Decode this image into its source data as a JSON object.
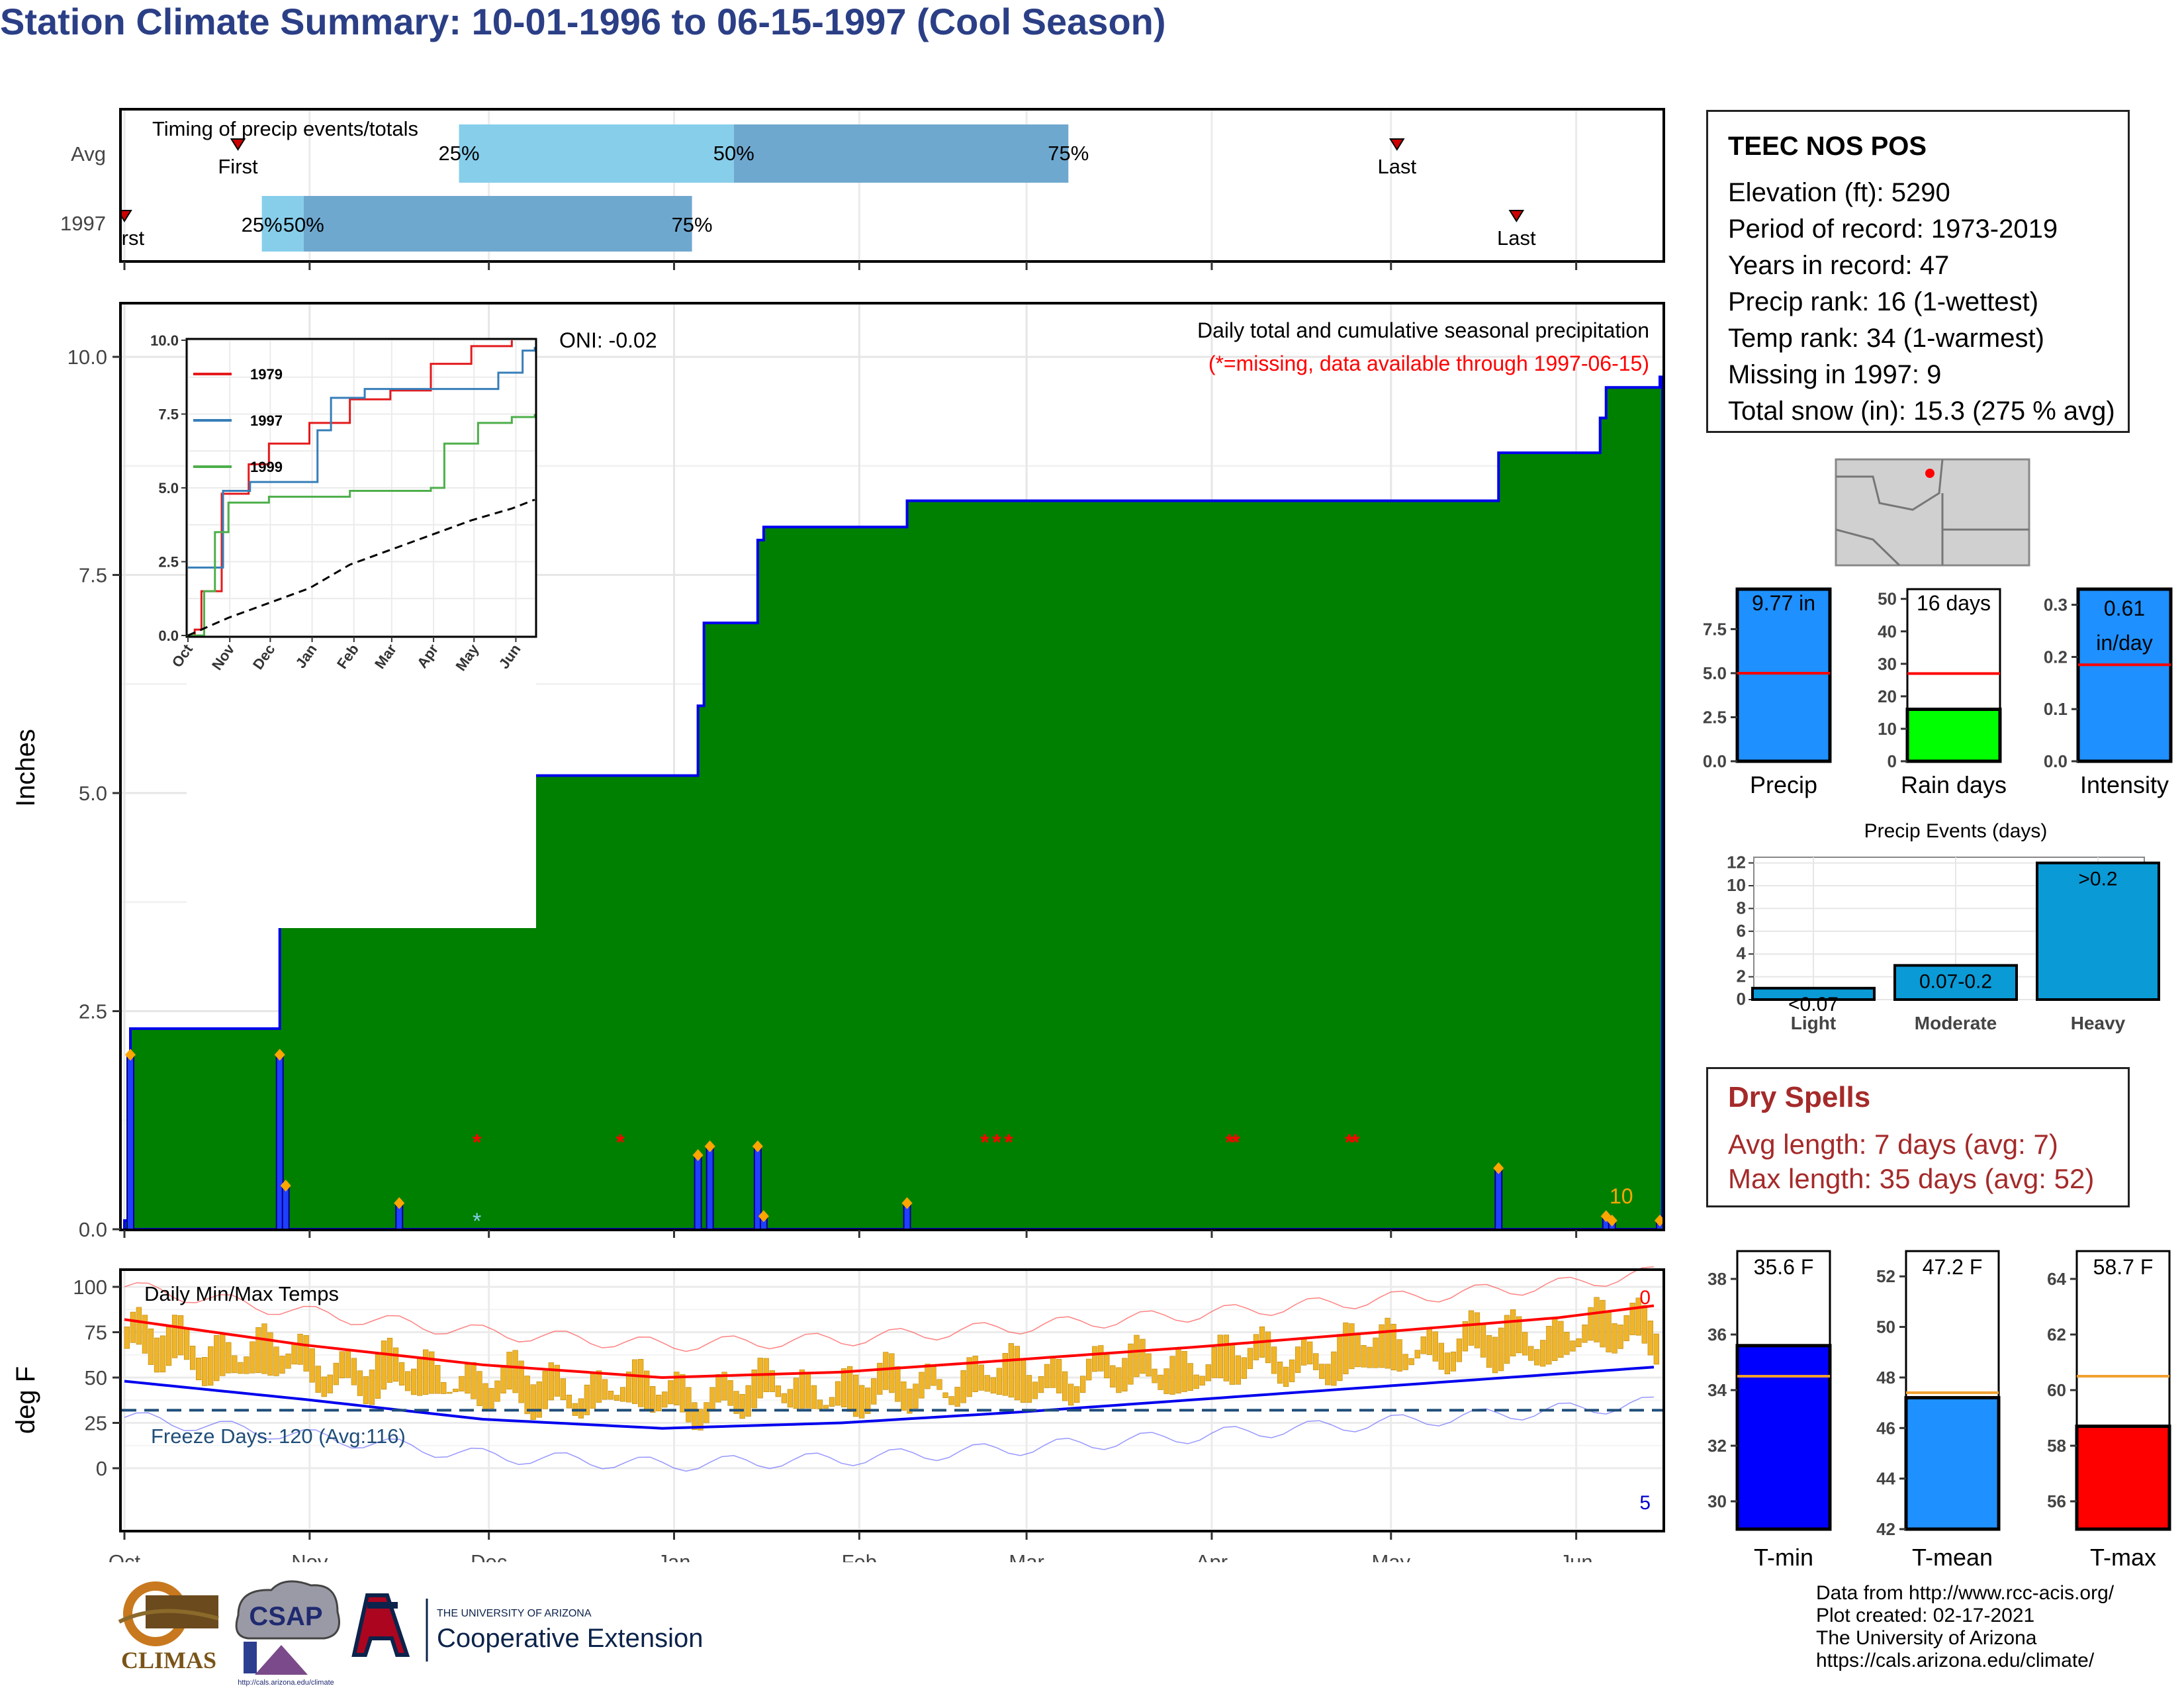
{
  "title": "Station Climate Summary: 10-01-1996 to 06-15-1997 (Cool Season)",
  "timing": {
    "label": "Timing of precip events/totals",
    "rows": [
      {
        "name": "Avg",
        "first_label": "First",
        "last_label": "Last",
        "p25_label": "25%",
        "p50_label": "50%",
        "p75_label": "75%"
      },
      {
        "name": "1997",
        "first_label": "First",
        "last_label": "Last",
        "p25_label": "25%",
        "p50_label": "50%",
        "p75_label": "75%"
      }
    ]
  },
  "main": {
    "ylabel": "Inches",
    "oni": "ONI: -0.02",
    "caption": "Daily total and cumulative seasonal precipitation",
    "missing_note": "(*=missing, data available through 1997-06-15)",
    "corner_count": "10",
    "yticks": [
      "0.0",
      "2.5",
      "5.0",
      "7.5",
      "10.0"
    ]
  },
  "inset": {
    "yticks": [
      "0.0",
      "2.5",
      "5.0",
      "7.5",
      "10.0"
    ],
    "xticks": [
      "Oct",
      "Nov",
      "Dec",
      "Jan",
      "Feb",
      "Mar",
      "Apr",
      "May",
      "Jun"
    ],
    "legend": [
      {
        "name": "1979",
        "color": "#e41a1c"
      },
      {
        "name": "1997",
        "color": "#377eb8"
      },
      {
        "name": "1999",
        "color": "#4daf4a"
      }
    ]
  },
  "temps": {
    "label": "Daily Min/Max Temps",
    "ylabel": "deg F",
    "freeze": "Freeze Days: 120 (Avg:116)",
    "top_count": "0",
    "bottom_count": "5",
    "yticks": [
      "0",
      "25",
      "50",
      "75",
      "100"
    ],
    "xticks": [
      "Oct",
      "Nov",
      "Dec",
      "Jan",
      "Feb",
      "Mar",
      "Apr",
      "May",
      "Jun"
    ]
  },
  "station": {
    "name": "TEEC NOS POS",
    "lines": [
      "Elevation (ft): 5290",
      "Period of record: 1973-2019",
      "Years in record: 47",
      "Precip rank: 16 (1-wettest)",
      "Temp rank: 34 (1-warmest)",
      "Missing in 1997: 9",
      "Total snow (in): 15.3 (275 % avg)"
    ]
  },
  "summary_bars": [
    {
      "label": "Precip",
      "value_text": "9.77 in",
      "yticks": [
        "0.0",
        "2.5",
        "5.0",
        "7.5"
      ]
    },
    {
      "label": "Rain days",
      "value_text": "16 days",
      "yticks": [
        "0",
        "10",
        "20",
        "30",
        "40",
        "50"
      ]
    },
    {
      "label": "Intensity",
      "value_text": "0.61",
      "unit": "in/day",
      "yticks": [
        "0.0",
        "0.1",
        "0.2",
        "0.3"
      ]
    }
  ],
  "events": {
    "title": "Precip Events (days)",
    "yticks": [
      "0",
      "2",
      "4",
      "6",
      "8",
      "10",
      "12"
    ],
    "categories": [
      "Light",
      "Moderate",
      "Heavy"
    ],
    "bar_labels": [
      "<0.07",
      "0.07-0.2",
      ">0.2"
    ]
  },
  "dry_spells": {
    "title": "Dry Spells",
    "lines": [
      "Avg length: 7 days (avg: 7)",
      "Max length: 35 days (avg: 52)"
    ]
  },
  "temp_bars": [
    {
      "label": "T-min",
      "value_text": "35.6 F",
      "yticks": [
        "30",
        "32",
        "34",
        "36",
        "38"
      ]
    },
    {
      "label": "T-mean",
      "value_text": "47.2 F",
      "yticks": [
        "42",
        "44",
        "46",
        "48",
        "50",
        "52"
      ]
    },
    {
      "label": "T-max",
      "value_text": "58.7 F",
      "yticks": [
        "56",
        "58",
        "60",
        "62",
        "64"
      ]
    }
  ],
  "credits": [
    "Data from http://www.rcc-acis.org/",
    "Plot created: 02-17-2021",
    "The University of Arizona",
    "https://cals.arizona.edu/climate/"
  ],
  "logos": {
    "climas": "CLIMAS",
    "csap": "CSAP",
    "csap_url": "http://cals.arizona.edu/climate",
    "ua_small": "THE UNIVERSITY OF ARIZONA",
    "ua_big": "Cooperative Extension"
  },
  "chart_data": [
    {
      "type": "bar",
      "name": "timing",
      "x_unit": "days since Oct 1",
      "rows": [
        {
          "row": "Avg",
          "first": 19,
          "p25": 56,
          "p50": 102,
          "p75": 158,
          "last": 213
        },
        {
          "row": "1997",
          "first": 0,
          "p25": 23,
          "p50": 30,
          "p75": 95,
          "last": 233
        }
      ]
    },
    {
      "type": "area",
      "name": "cumulative precipitation",
      "x_unit": "day of season (0=Oct 1)",
      "ylim": [
        0,
        10.6
      ],
      "observed_cumulative": [
        [
          0,
          0.1
        ],
        [
          1,
          2.3
        ],
        [
          25,
          2.3
        ],
        [
          26,
          4.3
        ],
        [
          27,
          4.8
        ],
        [
          31,
          4.9
        ],
        [
          45,
          4.9
        ],
        [
          46,
          5.2
        ],
        [
          95,
          5.2
        ],
        [
          96,
          6.0
        ],
        [
          97,
          6.95
        ],
        [
          105,
          6.95
        ],
        [
          106,
          7.9
        ],
        [
          107,
          8.05
        ],
        [
          130,
          8.05
        ],
        [
          131,
          8.35
        ],
        [
          229,
          8.35
        ],
        [
          230,
          8.9
        ],
        [
          246,
          8.9
        ],
        [
          247,
          9.3
        ],
        [
          248,
          9.65
        ],
        [
          256,
          9.65
        ],
        [
          257,
          9.77
        ]
      ],
      "avg_cumulative": [
        [
          0,
          0.05
        ],
        [
          15,
          0.2
        ],
        [
          30,
          0.65
        ],
        [
          45,
          0.9
        ],
        [
          60,
          1.1
        ],
        [
          75,
          1.3
        ],
        [
          90,
          1.55
        ],
        [
          100,
          1.7
        ],
        [
          115,
          2.1
        ],
        [
          130,
          2.45
        ],
        [
          150,
          2.75
        ],
        [
          170,
          3.1
        ],
        [
          190,
          3.45
        ],
        [
          210,
          3.85
        ],
        [
          230,
          4.25
        ],
        [
          245,
          4.5
        ],
        [
          257,
          4.6
        ]
      ],
      "daily_bars": [
        [
          1,
          2.0
        ],
        [
          26,
          2.0
        ],
        [
          27,
          0.5
        ],
        [
          46,
          0.3
        ],
        [
          96,
          0.85
        ],
        [
          98,
          0.95
        ],
        [
          106,
          0.95
        ],
        [
          107,
          0.15
        ],
        [
          131,
          0.3
        ],
        [
          230,
          0.7
        ],
        [
          248,
          0.15
        ],
        [
          249,
          0.1
        ],
        [
          257,
          0.1
        ]
      ],
      "missing_days": [
        59,
        83,
        144,
        146,
        148,
        185,
        186,
        205,
        206
      ]
    },
    {
      "type": "line",
      "name": "inset cumulative",
      "ylim": [
        0,
        10
      ],
      "series": [
        {
          "name": "1979",
          "points": [
            [
              0,
              0
            ],
            [
              5,
              0.2
            ],
            [
              10,
              1.5
            ],
            [
              25,
              4.8
            ],
            [
              45,
              5.8
            ],
            [
              60,
              6.5
            ],
            [
              90,
              7.2
            ],
            [
              120,
              8.0
            ],
            [
              150,
              8.3
            ],
            [
              180,
              9.2
            ],
            [
              210,
              9.8
            ],
            [
              240,
              10.0
            ]
          ]
        },
        {
          "name": "1997",
          "points": [
            [
              0,
              2.3
            ],
            [
              26,
              4.9
            ],
            [
              46,
              5.2
            ],
            [
              96,
              6.95
            ],
            [
              106,
              8.05
            ],
            [
              131,
              8.35
            ],
            [
              229,
              8.35
            ],
            [
              230,
              8.9
            ],
            [
              248,
              9.65
            ],
            [
              257,
              9.77
            ]
          ]
        },
        {
          "name": "1999",
          "points": [
            [
              0,
              0
            ],
            [
              12,
              1.5
            ],
            [
              20,
              3.5
            ],
            [
              30,
              4.5
            ],
            [
              60,
              4.7
            ],
            [
              120,
              4.9
            ],
            [
              180,
              5.0
            ],
            [
              190,
              6.5
            ],
            [
              215,
              7.2
            ],
            [
              240,
              7.4
            ],
            [
              257,
              7.5
            ]
          ]
        },
        {
          "name": "average",
          "points": [
            [
              0,
              0
            ],
            [
              30,
              0.6
            ],
            [
              60,
              1.1
            ],
            [
              90,
              1.6
            ],
            [
              120,
              2.4
            ],
            [
              150,
              2.9
            ],
            [
              180,
              3.4
            ],
            [
              210,
              3.9
            ],
            [
              240,
              4.3
            ],
            [
              257,
              4.6
            ]
          ]
        }
      ]
    },
    {
      "type": "line",
      "name": "daily min/max temps",
      "ylim": [
        -20,
        105
      ],
      "avg_max": [
        [
          0,
          82
        ],
        [
          30,
          68
        ],
        [
          60,
          57
        ],
        [
          90,
          50
        ],
        [
          120,
          53
        ],
        [
          150,
          60
        ],
        [
          180,
          67
        ],
        [
          210,
          75
        ],
        [
          240,
          83
        ],
        [
          257,
          90
        ]
      ],
      "avg_min": [
        [
          0,
          48
        ],
        [
          30,
          38
        ],
        [
          60,
          27
        ],
        [
          90,
          22
        ],
        [
          120,
          25
        ],
        [
          150,
          31
        ],
        [
          180,
          38
        ],
        [
          210,
          45
        ],
        [
          240,
          52
        ],
        [
          257,
          56
        ]
      ],
      "freeze_line": 32
    },
    {
      "type": "bar",
      "name": "season totals",
      "series": [
        {
          "name": "Precip",
          "value": 9.77,
          "avg": 5.0,
          "ylim": [
            0,
            9.77
          ]
        },
        {
          "name": "Rain days",
          "value": 16,
          "avg": 27,
          "ylim": [
            0,
            53
          ]
        },
        {
          "name": "Intensity",
          "value": 0.61,
          "avg": 0.185,
          "ylim": [
            0,
            0.33
          ]
        }
      ]
    },
    {
      "type": "bar",
      "name": "Precip Events (days)",
      "categories": [
        "Light",
        "Moderate",
        "Heavy"
      ],
      "values": [
        1,
        3,
        12
      ],
      "ylim": [
        0,
        12.5
      ]
    },
    {
      "type": "bar",
      "name": "season temperatures",
      "series": [
        {
          "name": "T-min",
          "value": 35.6,
          "avg": 34.5,
          "ylim": [
            29,
            39
          ]
        },
        {
          "name": "T-mean",
          "value": 47.2,
          "avg": 47.4,
          "ylim": [
            42,
            53
          ]
        },
        {
          "name": "T-max",
          "value": 58.7,
          "avg": 60.5,
          "ylim": [
            55,
            65
          ]
        }
      ]
    }
  ]
}
